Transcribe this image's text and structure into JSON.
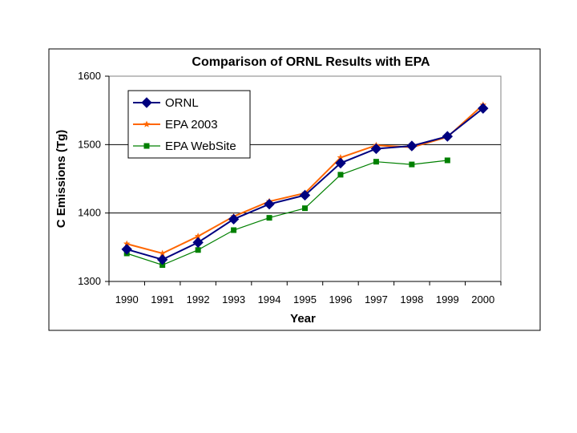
{
  "chart_data": {
    "type": "line",
    "title": "Comparison of ORNL Results with EPA",
    "xlabel": "Year",
    "ylabel": "C Emissions (Tg)",
    "categories": [
      "1990",
      "1991",
      "1992",
      "1993",
      "1994",
      "1995",
      "1996",
      "1997",
      "1998",
      "1999",
      "2000"
    ],
    "ylim": [
      1300,
      1600
    ],
    "yticks": [
      "1300",
      "1400",
      "1500",
      "1600"
    ],
    "grid": "horizontal",
    "legend_position": "top-left",
    "series": [
      {
        "name": "ORNL",
        "color": "#00007f",
        "marker": "diamond",
        "values": [
          1347,
          1332,
          1357,
          1391,
          1413,
          1426,
          1473,
          1494,
          1498,
          1512,
          1553
        ]
      },
      {
        "name": "EPA 2003",
        "color": "#ff6600",
        "marker": "star",
        "values": [
          1355,
          1341,
          1366,
          1395,
          1417,
          1429,
          1481,
          1499,
          1496,
          1511,
          1558
        ]
      },
      {
        "name": "EPA WebSite",
        "color": "#008000",
        "marker": "square",
        "values": [
          1341,
          1324,
          1346,
          1375,
          1393,
          1407,
          1456,
          1475,
          1471,
          1477,
          null
        ]
      }
    ]
  }
}
